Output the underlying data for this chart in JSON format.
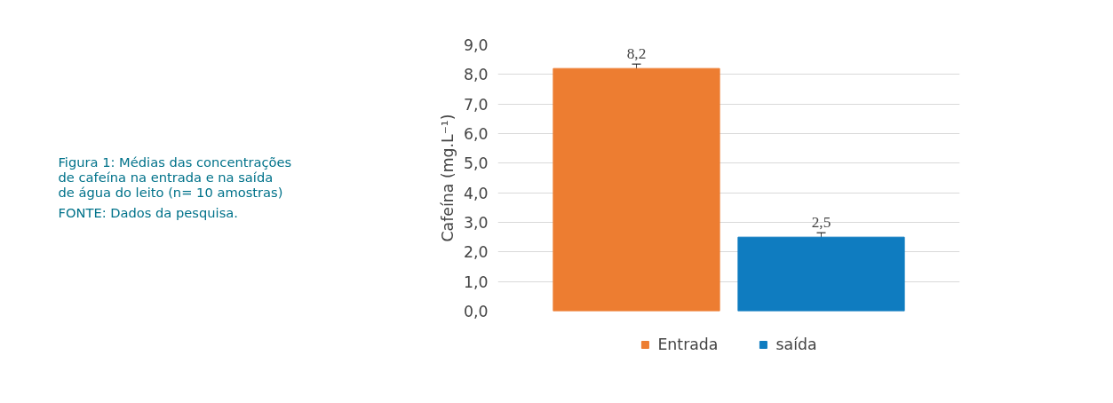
{
  "chart_data": {
    "type": "bar",
    "title": "Figura 1: Médias das concentrações de cafeína na entrada e na saída de água do leito (n= 10 amostras)",
    "annotations": [
      "FONTE: Dados da pesquisa."
    ],
    "ylabel": "Cafeína (mg.L⁻¹)",
    "categories": [
      null
    ],
    "series": [
      {
        "name": "Entrada",
        "color": "#ed7d31",
        "values": [
          8.2
        ],
        "errors": [
          0.15
        ],
        "value_labels": [
          "8,2"
        ]
      },
      {
        "name": "saída",
        "color": "#0f7cc0",
        "values": [
          2.5
        ],
        "errors": [
          0.15
        ],
        "value_labels": [
          "2,5"
        ]
      }
    ],
    "ylim": [
      0,
      9
    ],
    "yticks": [
      {
        "value": 0,
        "label": "0,0"
      },
      {
        "value": 1,
        "label": "1,0"
      },
      {
        "value": 2,
        "label": "2,0"
      },
      {
        "value": 3,
        "label": "3,0"
      },
      {
        "value": 4,
        "label": "4,0"
      },
      {
        "value": 5,
        "label": "5,0"
      },
      {
        "value": 6,
        "label": "6,0"
      },
      {
        "value": 7,
        "label": "7,0"
      },
      {
        "value": 8,
        "label": "8,0"
      },
      {
        "value": 9,
        "label": "9,0"
      }
    ],
    "grid": "y",
    "legend": "bottom"
  }
}
